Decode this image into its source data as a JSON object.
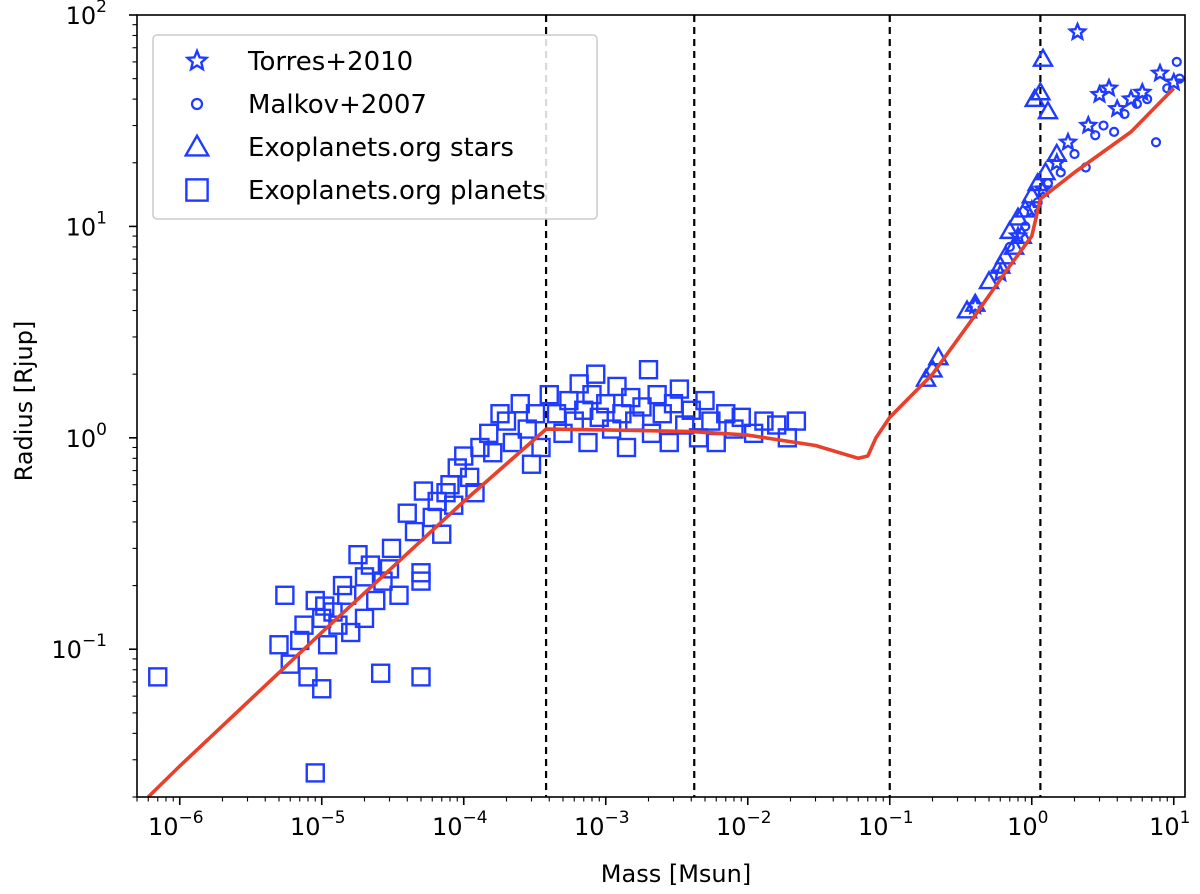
{
  "chart_data": {
    "type": "scatter",
    "title": "",
    "xlabel": "Mass [Msun]",
    "ylabel": "Radius [Rjup]",
    "xscale": "log",
    "yscale": "log",
    "xlim": [
      5e-07,
      12
    ],
    "ylim": [
      0.02,
      100
    ],
    "grid": false,
    "legend_position": "top-left",
    "x_tick_labels": [
      {
        "value": 1e-06,
        "base": "10",
        "exp": "−6"
      },
      {
        "value": 1e-05,
        "base": "10",
        "exp": "−5"
      },
      {
        "value": 0.0001,
        "base": "10",
        "exp": "−4"
      },
      {
        "value": 0.001,
        "base": "10",
        "exp": "−3"
      },
      {
        "value": 0.01,
        "base": "10",
        "exp": "−2"
      },
      {
        "value": 0.1,
        "base": "10",
        "exp": "−1"
      },
      {
        "value": 1,
        "base": "10",
        "exp": "0"
      },
      {
        "value": 10,
        "base": "10",
        "exp": "1"
      }
    ],
    "y_tick_labels": [
      {
        "value": 0.1,
        "base": "10",
        "exp": "−1"
      },
      {
        "value": 1,
        "base": "10",
        "exp": "0"
      },
      {
        "value": 10,
        "base": "10",
        "exp": "1"
      },
      {
        "value": 100,
        "base": "10",
        "exp": "2"
      }
    ],
    "vlines": [
      0.00038,
      0.0042,
      0.1,
      1.15
    ],
    "colors": {
      "points": "#1f3bff",
      "fit": "#e8402a",
      "vline": "#000000"
    },
    "legend": [
      {
        "label": "Torres+2010",
        "marker": "star"
      },
      {
        "label": "Malkov+2007",
        "marker": "circle"
      },
      {
        "label": "Exoplanets.org stars",
        "marker": "triangle"
      },
      {
        "label": "Exoplanets.org planets",
        "marker": "square"
      }
    ],
    "fit_curve": {
      "x": [
        6e-07,
        1e-06,
        1e-05,
        0.0001,
        0.00038,
        0.001,
        0.004,
        0.01,
        0.03,
        0.06,
        0.07,
        0.08,
        0.1,
        0.2,
        0.4,
        0.7,
        1.0,
        1.15,
        2.0,
        5.0,
        10.0
      ],
      "y": [
        0.02,
        0.028,
        0.12,
        0.5,
        1.1,
        1.09,
        1.07,
        1.03,
        0.92,
        0.8,
        0.82,
        1.0,
        1.25,
        2.0,
        3.8,
        6.5,
        9.0,
        13.5,
        18.0,
        28.0,
        45.0
      ]
    },
    "series": [
      {
        "name": "Exoplanets.org planets",
        "marker": "square",
        "points": [
          [
            7e-07,
            0.074
          ],
          [
            5e-06,
            0.105
          ],
          [
            5.5e-06,
            0.18
          ],
          [
            6e-06,
            0.085
          ],
          [
            7e-06,
            0.11
          ],
          [
            7.5e-06,
            0.13
          ],
          [
            8e-06,
            0.074
          ],
          [
            9e-06,
            0.026
          ],
          [
            9e-06,
            0.17
          ],
          [
            1e-05,
            0.065
          ],
          [
            1e-05,
            0.14
          ],
          [
            1.05e-05,
            0.16
          ],
          [
            1.1e-05,
            0.105
          ],
          [
            1.2e-05,
            0.15
          ],
          [
            1.3e-05,
            0.13
          ],
          [
            1.4e-05,
            0.2
          ],
          [
            1.5e-05,
            0.18
          ],
          [
            1.6e-05,
            0.12
          ],
          [
            1.8e-05,
            0.28
          ],
          [
            2e-05,
            0.14
          ],
          [
            2e-05,
            0.22
          ],
          [
            2.2e-05,
            0.25
          ],
          [
            2.4e-05,
            0.17
          ],
          [
            2.6e-05,
            0.077
          ],
          [
            2.7e-05,
            0.21
          ],
          [
            3e-05,
            0.24
          ],
          [
            3.1e-05,
            0.3
          ],
          [
            3.5e-05,
            0.18
          ],
          [
            4e-05,
            0.44
          ],
          [
            4.5e-05,
            0.36
          ],
          [
            5e-05,
            0.23
          ],
          [
            5e-05,
            0.21
          ],
          [
            5e-05,
            0.074
          ],
          [
            5.2e-05,
            0.56
          ],
          [
            6e-05,
            0.42
          ],
          [
            6.5e-05,
            0.5
          ],
          [
            7e-05,
            0.35
          ],
          [
            7.5e-05,
            0.55
          ],
          [
            8e-05,
            0.6
          ],
          [
            8.5e-05,
            0.48
          ],
          [
            9e-05,
            0.72
          ],
          [
            0.0001,
            0.82
          ],
          [
            0.00011,
            0.65
          ],
          [
            0.00012,
            0.55
          ],
          [
            0.00013,
            0.9
          ],
          [
            0.00015,
            1.05
          ],
          [
            0.00016,
            0.85
          ],
          [
            0.00018,
            1.3
          ],
          [
            0.0002,
            1.2
          ],
          [
            0.00022,
            0.95
          ],
          [
            0.00025,
            1.45
          ],
          [
            0.00028,
            1.1
          ],
          [
            0.0003,
            0.75
          ],
          [
            0.00032,
            1.3
          ],
          [
            0.00035,
            0.9
          ],
          [
            0.0004,
            1.6
          ],
          [
            0.00045,
            1.3
          ],
          [
            0.0005,
            1.05
          ],
          [
            0.00055,
            1.5
          ],
          [
            0.0006,
            1.2
          ],
          [
            0.00065,
            1.8
          ],
          [
            0.0007,
            1.35
          ],
          [
            0.00075,
            0.95
          ],
          [
            0.0008,
            1.6
          ],
          [
            0.00085,
            2.0
          ],
          [
            0.0009,
            1.25
          ],
          [
            0.001,
            1.45
          ],
          [
            0.0011,
            1.1
          ],
          [
            0.0012,
            1.75
          ],
          [
            0.0013,
            1.3
          ],
          [
            0.0014,
            0.9
          ],
          [
            0.0015,
            1.55
          ],
          [
            0.0016,
            1.2
          ],
          [
            0.0018,
            1.4
          ],
          [
            0.002,
            2.1
          ],
          [
            0.0021,
            1.05
          ],
          [
            0.0023,
            1.6
          ],
          [
            0.0025,
            1.3
          ],
          [
            0.0028,
            0.95
          ],
          [
            0.003,
            1.45
          ],
          [
            0.0033,
            1.7
          ],
          [
            0.0036,
            1.15
          ],
          [
            0.004,
            1.35
          ],
          [
            0.0045,
            1.0
          ],
          [
            0.005,
            1.5
          ],
          [
            0.0055,
            1.2
          ],
          [
            0.006,
            0.95
          ],
          [
            0.007,
            1.3
          ],
          [
            0.008,
            1.1
          ],
          [
            0.009,
            1.25
          ],
          [
            0.011,
            1.05
          ],
          [
            0.013,
            1.2
          ],
          [
            0.016,
            1.15
          ],
          [
            0.019,
            1.0
          ],
          [
            0.022,
            1.2
          ]
        ]
      },
      {
        "name": "Exoplanets.org stars",
        "marker": "triangle",
        "points": [
          [
            0.18,
            1.9
          ],
          [
            0.2,
            2.1
          ],
          [
            0.22,
            2.4
          ],
          [
            0.35,
            4.0
          ],
          [
            0.4,
            4.3
          ],
          [
            0.5,
            5.5
          ],
          [
            0.6,
            6.5
          ],
          [
            0.65,
            7.2
          ],
          [
            0.7,
            9.5
          ],
          [
            0.75,
            8.0
          ],
          [
            0.8,
            11.0
          ],
          [
            0.85,
            9.0
          ],
          [
            0.9,
            12.0
          ],
          [
            1.0,
            14.0
          ],
          [
            1.05,
            40.0
          ],
          [
            1.1,
            16.0
          ],
          [
            1.15,
            43.0
          ],
          [
            1.2,
            62.0
          ],
          [
            1.25,
            18.0
          ],
          [
            1.3,
            35.0
          ],
          [
            1.5,
            22.0
          ]
        ]
      },
      {
        "name": "Torres+2010",
        "marker": "star",
        "points": [
          [
            0.4,
            4.2
          ],
          [
            0.6,
            6.0
          ],
          [
            0.8,
            9.0
          ],
          [
            1.0,
            12.0
          ],
          [
            1.2,
            15.0
          ],
          [
            1.5,
            20.0
          ],
          [
            1.8,
            25.0
          ],
          [
            2.1,
            83.0
          ],
          [
            2.5,
            30.0
          ],
          [
            3.0,
            42.0
          ],
          [
            3.5,
            45.0
          ],
          [
            4.0,
            36.0
          ],
          [
            5.0,
            40.0
          ],
          [
            6.0,
            43.0
          ],
          [
            8.0,
            53.0
          ],
          [
            10.0,
            48.0
          ]
        ]
      },
      {
        "name": "Malkov+2007",
        "marker": "circle",
        "points": [
          [
            0.7,
            8.0
          ],
          [
            0.9,
            10.0
          ],
          [
            1.1,
            13.0
          ],
          [
            1.3,
            16.0
          ],
          [
            1.6,
            18.0
          ],
          [
            2.0,
            22.0
          ],
          [
            2.4,
            19.0
          ],
          [
            2.8,
            27.0
          ],
          [
            3.2,
            30.0
          ],
          [
            3.8,
            28.0
          ],
          [
            4.5,
            34.0
          ],
          [
            5.5,
            38.0
          ],
          [
            6.5,
            40.0
          ],
          [
            7.5,
            25.0
          ],
          [
            9.0,
            45.0
          ],
          [
            10.5,
            60.0
          ],
          [
            11.0,
            50.0
          ]
        ]
      }
    ]
  }
}
